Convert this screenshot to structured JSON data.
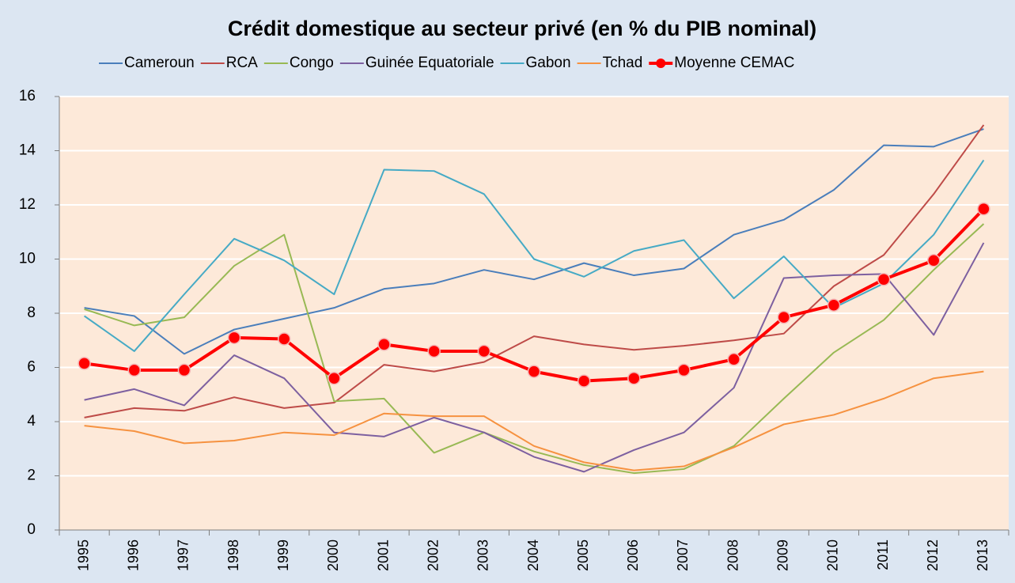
{
  "chart_data": {
    "type": "line",
    "title": "Crédit domestique au secteur privé (en % du PIB nominal)",
    "categories": [
      "1995",
      "1996",
      "1997",
      "1998",
      "1999",
      "2000",
      "2001",
      "2002",
      "2003",
      "2004",
      "2005",
      "2006",
      "2007",
      "2008",
      "2009",
      "2010",
      "2011",
      "2012",
      "2013"
    ],
    "ylim": [
      0,
      16
    ],
    "yticks": [
      0,
      2,
      4,
      6,
      8,
      10,
      12,
      14,
      16
    ],
    "grid": true,
    "legend": "top",
    "series": [
      {
        "name": "Cameroun",
        "color": "#4a7ebb",
        "values": [
          8.2,
          7.9,
          6.5,
          7.4,
          7.8,
          8.2,
          8.9,
          9.1,
          9.6,
          9.25,
          9.85,
          9.4,
          9.65,
          10.9,
          11.45,
          12.55,
          14.2,
          14.15,
          14.8
        ]
      },
      {
        "name": "RCA",
        "color": "#be4b48",
        "values": [
          4.15,
          4.5,
          4.4,
          4.9,
          4.5,
          4.7,
          6.1,
          5.85,
          6.2,
          7.15,
          6.85,
          6.65,
          6.8,
          7.0,
          7.25,
          9.0,
          10.15,
          12.4,
          14.95
        ]
      },
      {
        "name": "Congo",
        "color": "#98b954",
        "values": [
          8.15,
          7.55,
          7.85,
          9.75,
          10.9,
          4.75,
          4.85,
          2.85,
          3.6,
          2.9,
          2.4,
          2.1,
          2.25,
          3.1,
          4.85,
          6.55,
          7.75,
          9.6,
          11.3
        ]
      },
      {
        "name": "Guinée Equatoriale",
        "color": "#7d60a0",
        "values": [
          4.8,
          5.2,
          4.6,
          6.45,
          5.6,
          3.6,
          3.45,
          4.15,
          3.6,
          2.7,
          2.15,
          2.95,
          3.6,
          5.25,
          9.3,
          9.4,
          9.45,
          7.2,
          10.6
        ]
      },
      {
        "name": "Gabon",
        "color": "#46aac5",
        "values": [
          7.9,
          6.6,
          8.7,
          10.75,
          9.95,
          8.7,
          13.3,
          13.25,
          12.4,
          10.0,
          9.35,
          10.3,
          10.7,
          8.55,
          10.1,
          8.2,
          9.1,
          10.9,
          13.65
        ]
      },
      {
        "name": "Tchad",
        "color": "#f69240",
        "values": [
          3.85,
          3.65,
          3.2,
          3.3,
          3.6,
          3.5,
          4.3,
          4.2,
          4.2,
          3.1,
          2.5,
          2.2,
          2.35,
          3.05,
          3.9,
          4.25,
          4.85,
          5.6,
          5.85
        ]
      },
      {
        "name": "Moyenne CEMAC",
        "color": "#ff0000",
        "markers": true,
        "values": [
          6.15,
          5.9,
          5.9,
          7.1,
          7.05,
          5.6,
          6.85,
          6.6,
          6.6,
          5.85,
          5.5,
          5.6,
          5.9,
          6.3,
          7.85,
          8.3,
          9.25,
          9.95,
          11.85
        ]
      }
    ]
  }
}
